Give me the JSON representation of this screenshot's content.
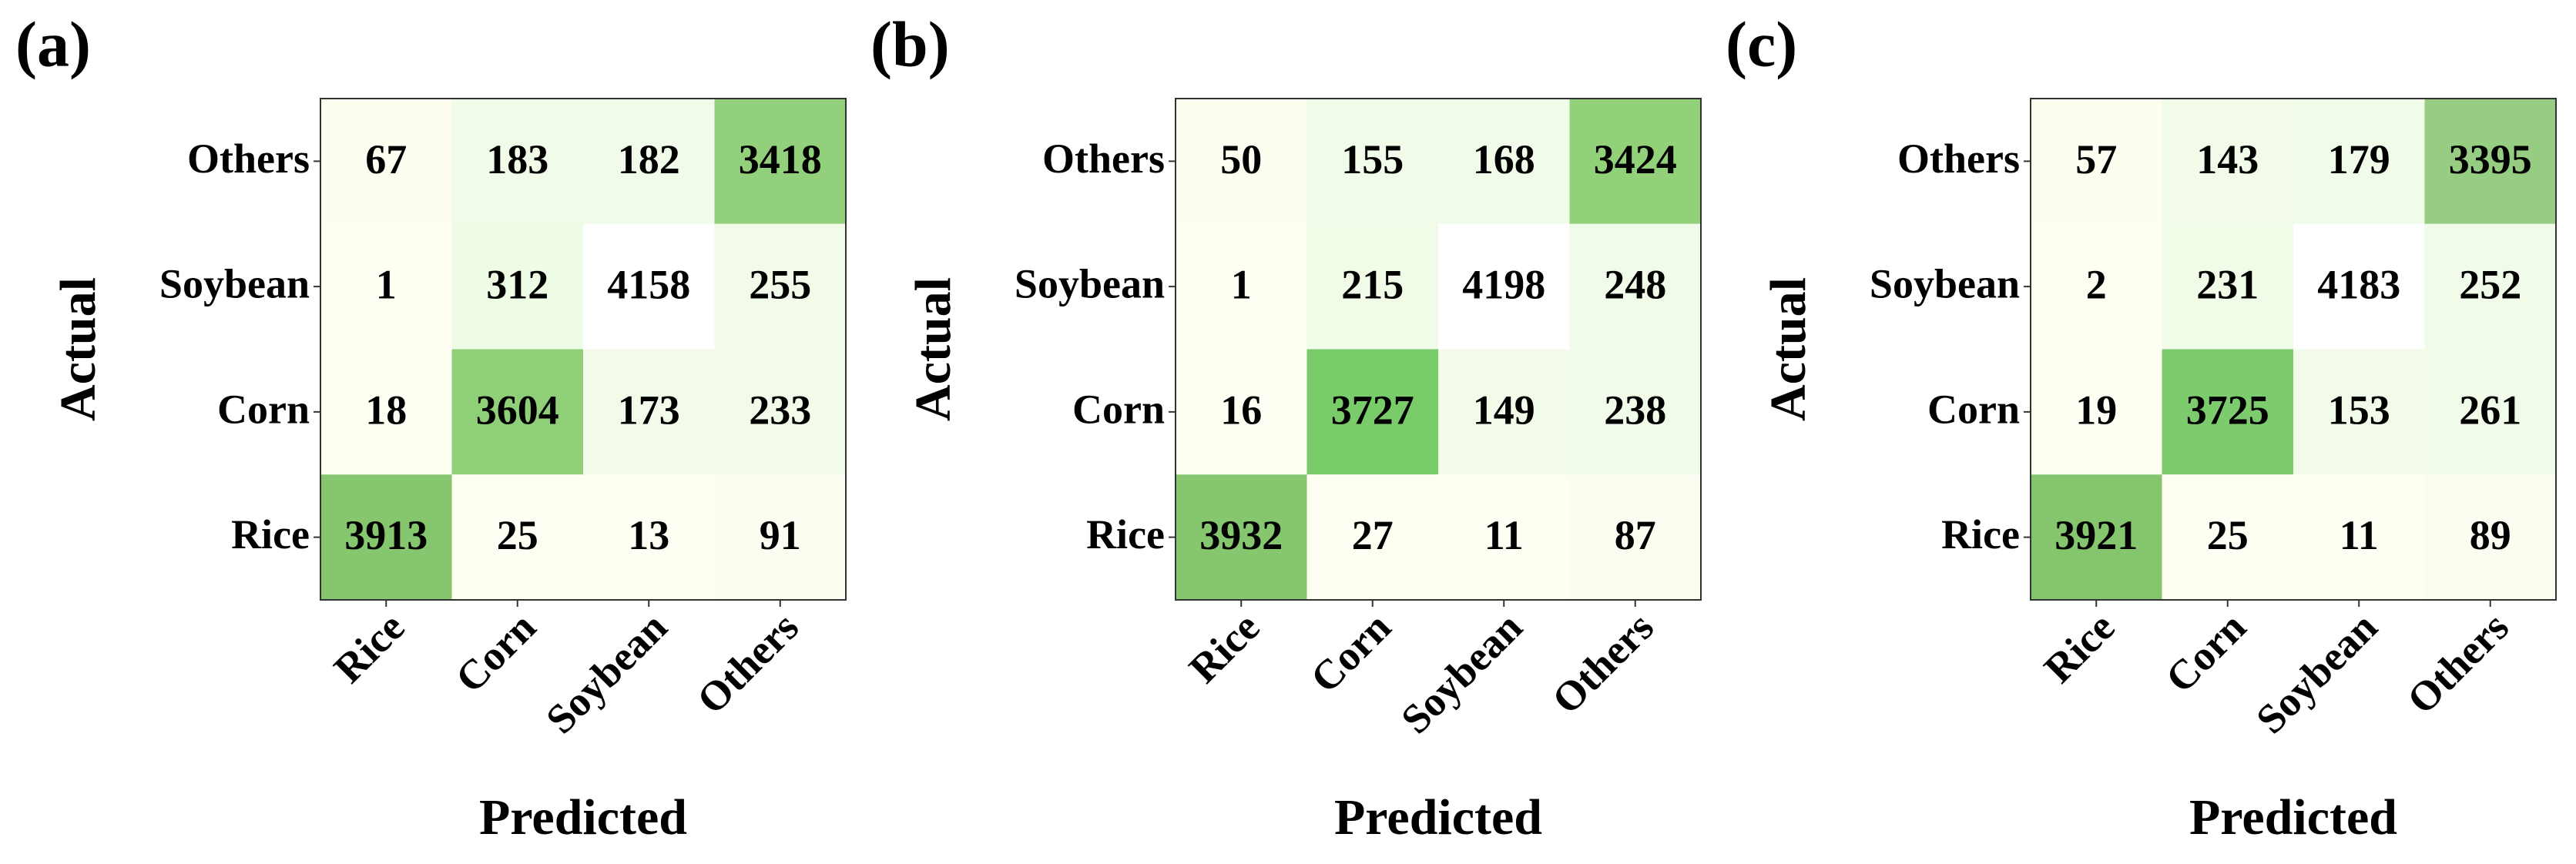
{
  "chart_data": [
    {
      "type": "heatmap",
      "title": "(a)",
      "x_label": "Predicted",
      "y_label": "Actual",
      "x_categories": [
        "Rice",
        "Corn",
        "Soybean",
        "Others"
      ],
      "y_categories": [
        "Others",
        "Soybean",
        "Corn",
        "Rice"
      ],
      "values": [
        [
          67,
          183,
          182,
          3418
        ],
        [
          1,
          312,
          4158,
          255
        ],
        [
          18,
          3604,
          173,
          233
        ],
        [
          3913,
          25,
          13,
          91
        ]
      ],
      "cell_colors": [
        [
          "#fdfdf0",
          "#f1fbe9",
          "#f1fbe9",
          "#93d07b"
        ],
        [
          "#fefef2",
          "#eefbe5",
          "#ffffff",
          "#f2fbea"
        ],
        [
          "#fefef2",
          "#8fcf78",
          "#f2fbea",
          "#f2fbea"
        ],
        [
          "#85c66e",
          "#fefef2",
          "#fefef2",
          "#fafdf0"
        ]
      ]
    },
    {
      "type": "heatmap",
      "title": "(b)",
      "x_label": "Predicted",
      "y_label": "Actual",
      "x_categories": [
        "Rice",
        "Corn",
        "Soybean",
        "Others"
      ],
      "y_categories": [
        "Others",
        "Soybean",
        "Corn",
        "Rice"
      ],
      "values": [
        [
          50,
          155,
          168,
          3424
        ],
        [
          1,
          215,
          4198,
          248
        ],
        [
          16,
          3727,
          149,
          238
        ],
        [
          3932,
          27,
          11,
          87
        ]
      ],
      "cell_colors": [
        [
          "#fdfdf0",
          "#f1fbe9",
          "#f1fbe9",
          "#92d17a"
        ],
        [
          "#fefef2",
          "#f0fbe8",
          "#ffffff",
          "#f1fbe9"
        ],
        [
          "#fefef2",
          "#7acb6a",
          "#f2fbea",
          "#f1fbe9"
        ],
        [
          "#85c66f",
          "#fefef2",
          "#fefef2",
          "#fafdf0"
        ]
      ]
    },
    {
      "type": "heatmap",
      "title": "(c)",
      "x_label": "Predicted",
      "y_label": "Actual",
      "x_categories": [
        "Rice",
        "Corn",
        "Soybean",
        "Others"
      ],
      "y_categories": [
        "Others",
        "Soybean",
        "Corn",
        "Rice"
      ],
      "values": [
        [
          57,
          143,
          179,
          3395
        ],
        [
          2,
          231,
          4183,
          252
        ],
        [
          19,
          3725,
          153,
          261
        ],
        [
          3921,
          25,
          11,
          89
        ]
      ],
      "cell_colors": [
        [
          "#fdfdf0",
          "#f2fbea",
          "#f1fbe9",
          "#97cd83"
        ],
        [
          "#fefef2",
          "#f0fbe8",
          "#ffffff",
          "#f1fbe9"
        ],
        [
          "#fefef2",
          "#7ccb6c",
          "#f2fbea",
          "#f1fbe9"
        ],
        [
          "#84c56e",
          "#fefef2",
          "#fefef2",
          "#fafdf0"
        ]
      ]
    }
  ]
}
